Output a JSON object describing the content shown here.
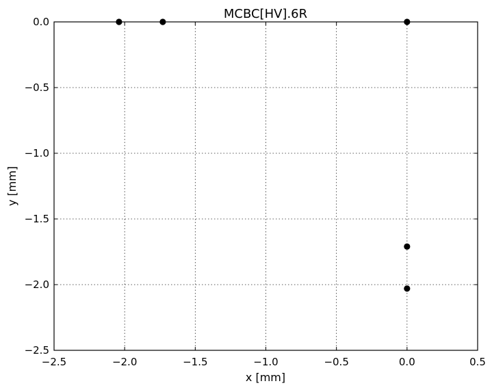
{
  "chart_data": {
    "type": "scatter",
    "title": "MCBC[HV].6R",
    "xlabel": "x [mm]",
    "ylabel": "y [mm]",
    "xlim": [
      -2.5,
      0.5
    ],
    "ylim": [
      -2.5,
      0.0
    ],
    "xticks": [
      -2.5,
      -2.0,
      -1.5,
      -1.0,
      -0.5,
      0.0,
      0.5
    ],
    "yticks": [
      0.0,
      -0.5,
      -1.0,
      -1.5,
      -2.0,
      -2.5
    ],
    "xtick_labels": [
      "−2.5",
      "−2.0",
      "−1.5",
      "−1.0",
      "−0.5",
      "0.0",
      "0.5"
    ],
    "ytick_labels": [
      "0.0",
      "−0.5",
      "−1.0",
      "−1.5",
      "−2.0",
      "−2.5"
    ],
    "grid": true,
    "marker_color": "#000000",
    "series": [
      {
        "x": [
          -2.04,
          -1.73,
          0.0,
          0.0,
          0.0
        ],
        "y": [
          0.0,
          0.0,
          0.0,
          -1.71,
          -2.03
        ]
      }
    ]
  }
}
